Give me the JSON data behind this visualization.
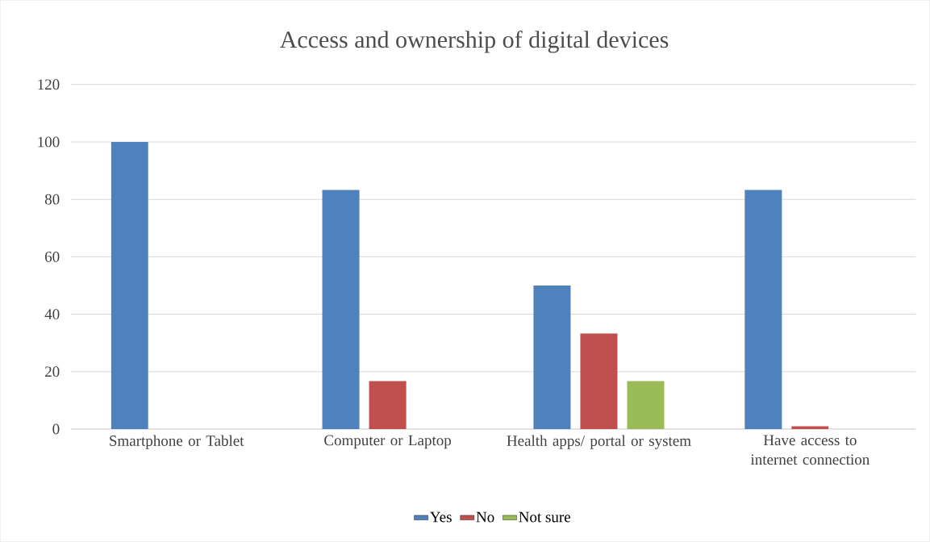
{
  "chart_data": {
    "type": "bar",
    "title": "Access and ownership of digital devices",
    "categories": [
      "Smartphone or Tablet",
      "Computer or Laptop",
      "Health apps/ portal or system",
      "Have access to internet connection"
    ],
    "series": [
      {
        "name": "Yes",
        "color": "#4f81bd",
        "values": [
          100,
          83.3,
          50,
          83.3
        ]
      },
      {
        "name": "No",
        "color": "#c0504d",
        "values": [
          0,
          16.7,
          33.3,
          1
        ]
      },
      {
        "name": "Not sure",
        "color": "#9bbb59",
        "values": [
          0,
          0,
          16.7,
          0
        ]
      }
    ],
    "ylim": [
      0,
      120
    ],
    "yticks": [
      0,
      20,
      40,
      60,
      80,
      100,
      120
    ],
    "grid": "y",
    "legend": "bottom"
  }
}
